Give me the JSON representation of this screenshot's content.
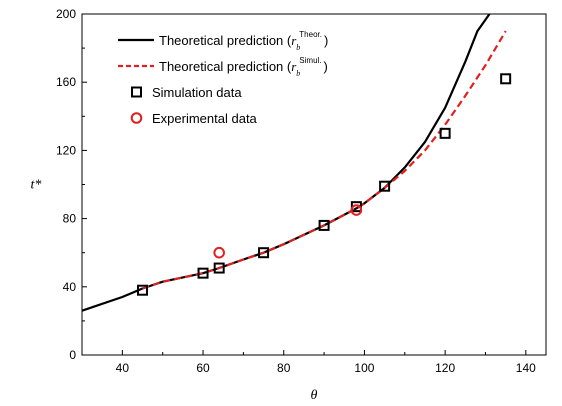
{
  "chart_data": {
    "type": "line",
    "xlabel": "θ",
    "ylabel": "t*",
    "xlim": [
      30,
      145
    ],
    "ylim": [
      0,
      200
    ],
    "x_ticks": [
      40,
      60,
      80,
      100,
      120,
      140
    ],
    "y_ticks": [
      0,
      40,
      80,
      120,
      160,
      200
    ],
    "grid": false,
    "legend_position": "top-left",
    "series": [
      {
        "name": "Theoretical prediction (r_b^Theor.)",
        "legend_prefix": "Theoretical prediction (",
        "legend_var": "r",
        "legend_sub": "b",
        "legend_sup": "Theor.",
        "legend_suffix": ")",
        "style": "solid-line",
        "color": "#000000",
        "x": [
          30,
          40,
          45,
          50,
          60,
          64,
          70,
          75,
          80,
          90,
          98,
          100,
          105,
          110,
          115,
          120,
          125,
          128,
          131
        ],
        "y": [
          26,
          34,
          39,
          43,
          48,
          51,
          56,
          60,
          65,
          76,
          86,
          89,
          98,
          110,
          125,
          145,
          172,
          190,
          200
        ]
      },
      {
        "name": "Theoretical prediction (r_b^Simul.)",
        "legend_prefix": "Theoretical prediction (",
        "legend_var": "r",
        "legend_sub": "b",
        "legend_sup": "Simul.",
        "legend_suffix": ")",
        "style": "dashed-line",
        "color": "#e02020",
        "x": [
          45,
          50,
          60,
          64,
          70,
          75,
          80,
          90,
          98,
          100,
          105,
          110,
          115,
          120,
          125,
          130,
          135
        ],
        "y": [
          39,
          43,
          48,
          51,
          56,
          60,
          65,
          76,
          86,
          89,
          98,
          108,
          120,
          135,
          152,
          170,
          190
        ]
      },
      {
        "name": "Simulation data",
        "style": "open-square",
        "color": "#000000",
        "x": [
          45,
          60,
          64,
          75,
          90,
          98,
          105,
          120,
          135
        ],
        "y": [
          38,
          48,
          51,
          60,
          76,
          87,
          99,
          130,
          162
        ]
      },
      {
        "name": "Experimental data",
        "style": "open-circle",
        "color": "#e02020",
        "x": [
          64,
          98
        ],
        "y": [
          60,
          85
        ]
      }
    ]
  }
}
